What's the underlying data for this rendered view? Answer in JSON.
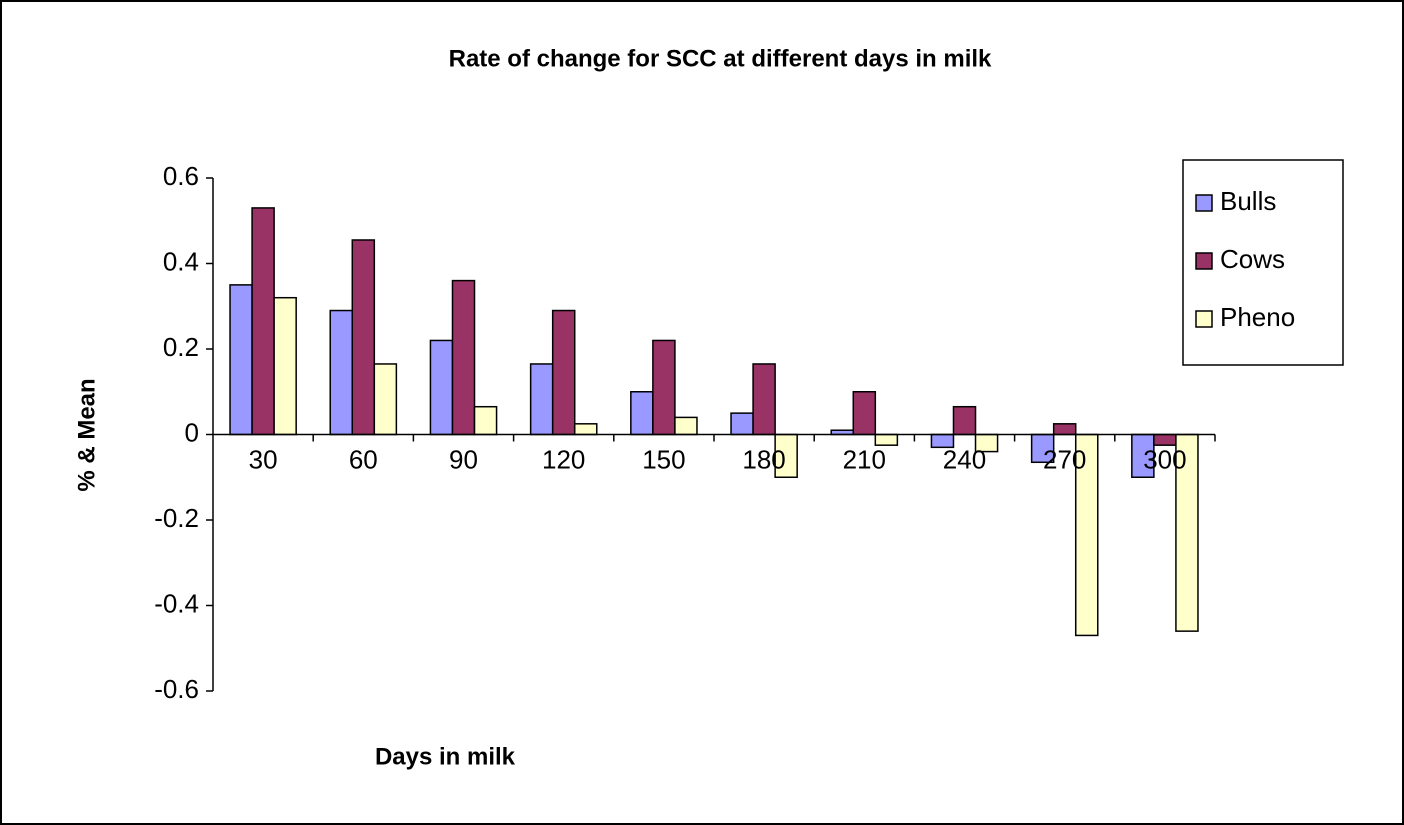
{
  "chart_data": {
    "type": "bar",
    "title": "Rate of change for SCC at different days in milk",
    "x_label": "Days in milk",
    "y_label": "% & Mean",
    "categories": [
      "30",
      "60",
      "90",
      "120",
      "150",
      "180",
      "210",
      "240",
      "270",
      "300"
    ],
    "series": [
      {
        "name": "Bulls",
        "color": "#9999ff",
        "values": [
          0.35,
          0.29,
          0.22,
          0.165,
          0.1,
          0.05,
          0.01,
          -0.03,
          -0.065,
          -0.1
        ]
      },
      {
        "name": "Cows",
        "color": "#993366",
        "values": [
          0.53,
          0.455,
          0.36,
          0.29,
          0.22,
          0.165,
          0.1,
          0.065,
          0.025,
          -0.025
        ]
      },
      {
        "name": "Pheno",
        "color": "#ffffcc",
        "values": [
          0.32,
          0.165,
          0.065,
          0.025,
          0.04,
          -0.1,
          -0.025,
          -0.04,
          -0.47,
          -0.46
        ]
      }
    ],
    "ylim": [
      -0.6,
      0.6
    ],
    "yticks": [
      -0.6,
      -0.4,
      -0.2,
      0,
      0.2,
      0.4,
      0.6
    ],
    "grid": false,
    "legend": "right"
  }
}
